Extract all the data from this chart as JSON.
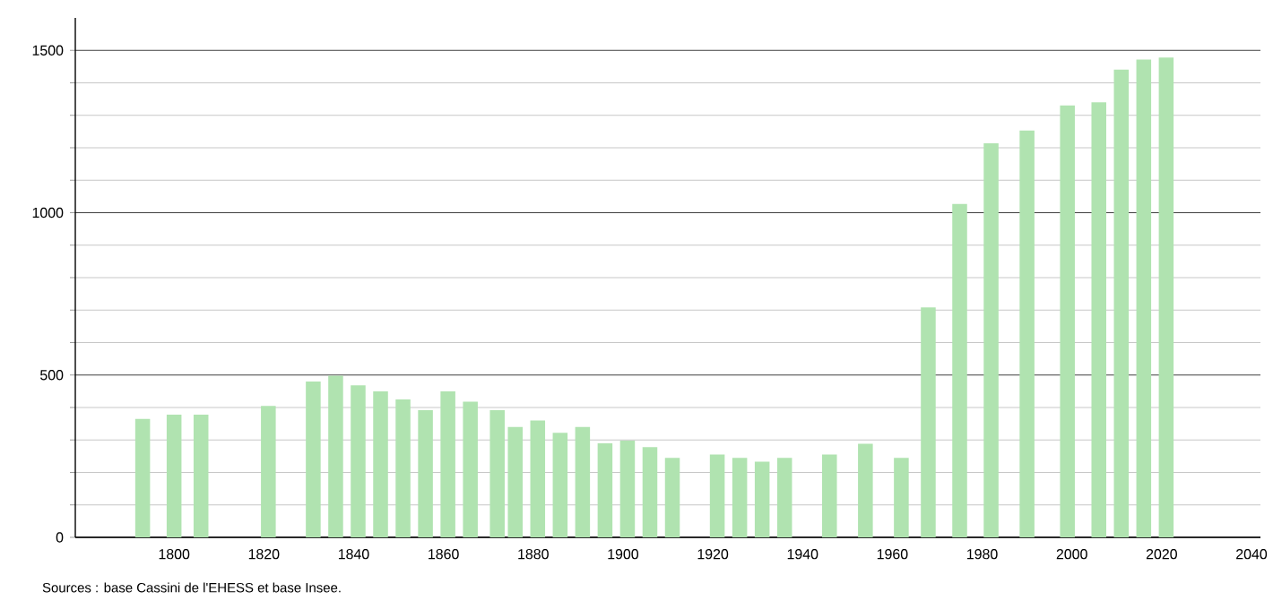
{
  "chart_data": {
    "type": "bar",
    "x": [
      1793,
      1800,
      1806,
      1821,
      1831,
      1836,
      1841,
      1846,
      1851,
      1856,
      1861,
      1866,
      1872,
      1876,
      1881,
      1886,
      1891,
      1896,
      1901,
      1906,
      1911,
      1921,
      1926,
      1931,
      1936,
      1946,
      1954,
      1962,
      1968,
      1975,
      1982,
      1990,
      1999,
      2006,
      2011,
      2016,
      2021
    ],
    "values": [
      365,
      378,
      378,
      405,
      480,
      498,
      468,
      450,
      425,
      392,
      450,
      418,
      392,
      340,
      360,
      322,
      340,
      290,
      298,
      278,
      245,
      255,
      245,
      233,
      245,
      255,
      288,
      245,
      708,
      1027,
      1214,
      1253,
      1330,
      1340,
      1441,
      1472,
      1478
    ],
    "color": "#b0e3b0",
    "xlim": [
      1778,
      2042
    ],
    "xticks": [
      1800,
      1820,
      1840,
      1860,
      1880,
      1900,
      1920,
      1940,
      1960,
      1980,
      2000,
      2020,
      2040
    ],
    "ylim": [
      0,
      1600
    ],
    "yticks": [
      0,
      500,
      1000,
      1500
    ],
    "grid": "y",
    "annotations": [
      "Sources : base Cassini de l'EHESS et base Insee."
    ]
  }
}
